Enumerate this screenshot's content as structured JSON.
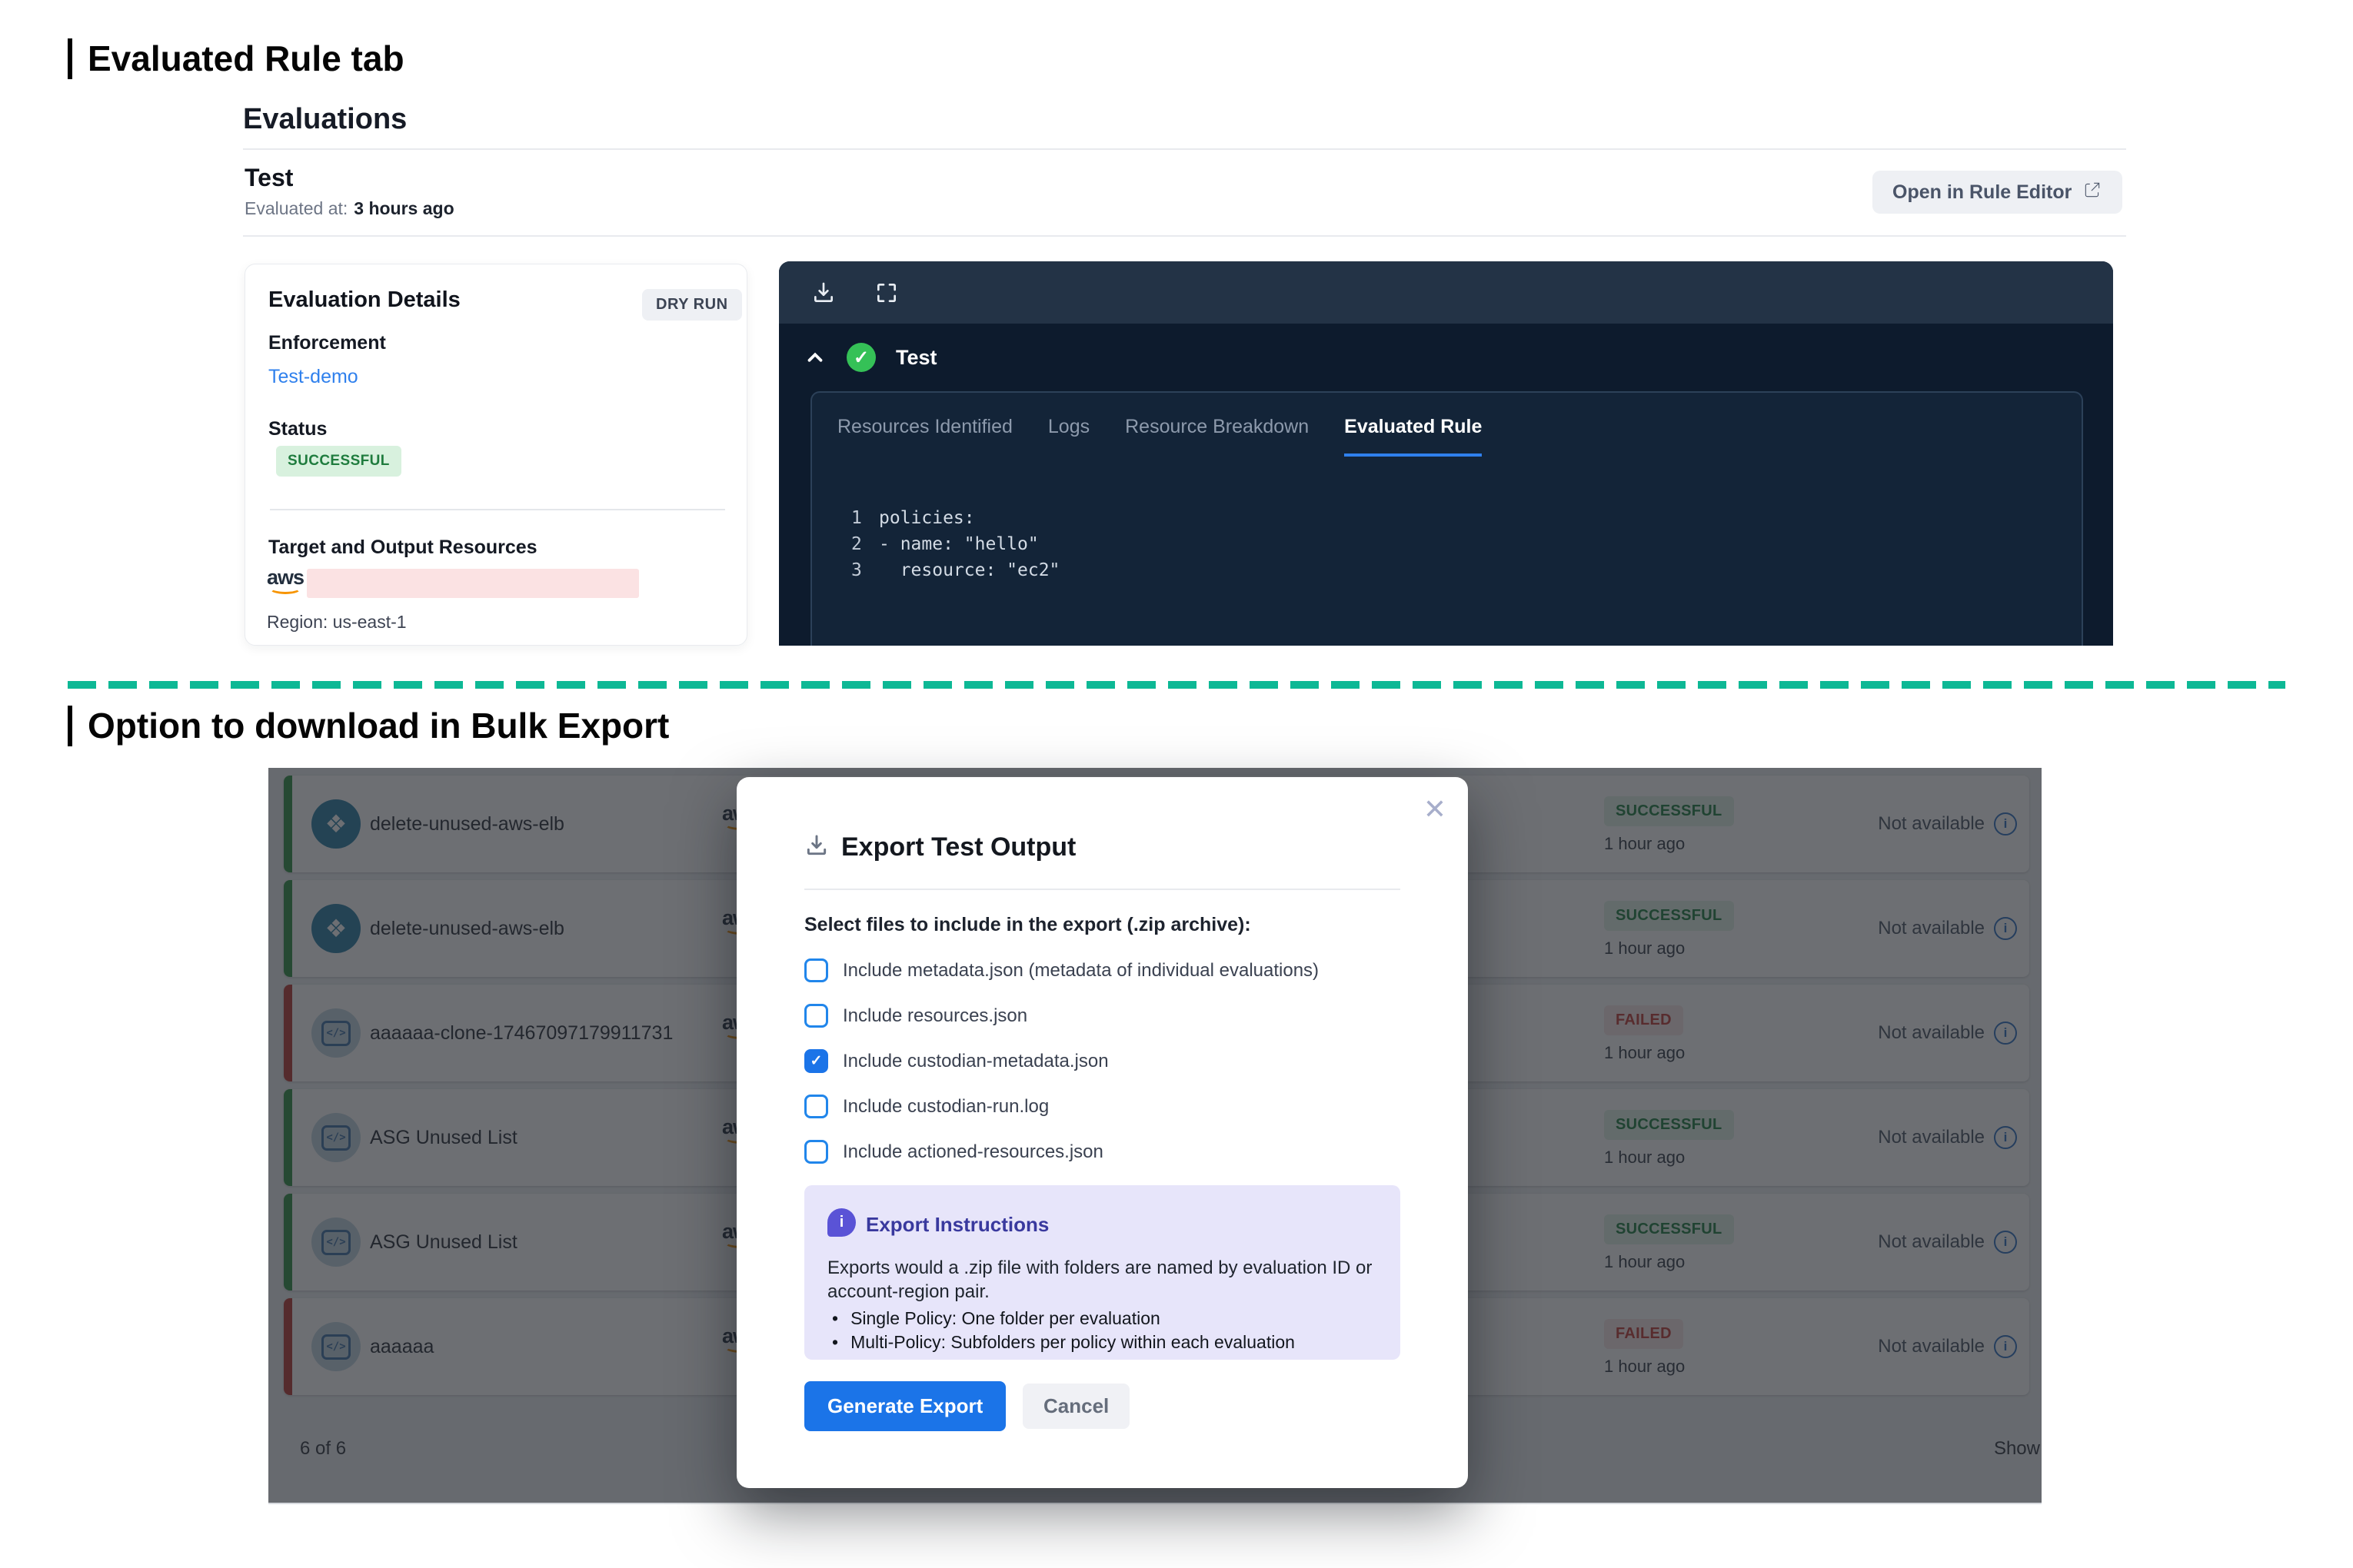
{
  "sections": {
    "section1_title": "Evaluated Rule tab",
    "section2_title": "Option to download in Bulk Export"
  },
  "aws_logo_text": "aws",
  "evaluations": {
    "heading": "Evaluations",
    "run_name": "Test",
    "evaluated_at_label": "Evaluated at:",
    "evaluated_at_value": "3 hours ago",
    "open_in_rule_editor": "Open in Rule Editor"
  },
  "evaluation_details": {
    "title": "Evaluation Details",
    "dry_run_badge": "DRY RUN",
    "enforcement_label": "Enforcement",
    "enforcement_value": "Test-demo",
    "status_label": "Status",
    "status_value": "SUCCESSFUL",
    "target_label": "Target and Output Resources",
    "region": "Region: us-east-1"
  },
  "viewer": {
    "run_name": "Test",
    "check_glyph": "✓",
    "tabs": [
      "Resources Identified",
      "Logs",
      "Resource Breakdown",
      "Evaluated Rule"
    ],
    "active_tab": "Evaluated Rule",
    "code_lines": [
      {
        "num": "1",
        "text": "policies:"
      },
      {
        "num": "2",
        "text": "- name: \"hello\""
      },
      {
        "num": "3",
        "text": "  resource: \"ec2\""
      }
    ]
  },
  "export_modal": {
    "title": "Export Test Output",
    "close_glyph": "✕",
    "select_label": "Select files to include in the export (.zip archive):",
    "checkboxes": [
      {
        "label": "Include metadata.json (metadata of individual evaluations)",
        "checked": false
      },
      {
        "label": "Include resources.json",
        "checked": false
      },
      {
        "label": "Include custodian-metadata.json",
        "checked": true
      },
      {
        "label": "Include custodian-run.log",
        "checked": false
      },
      {
        "label": "Include actioned-resources.json",
        "checked": false
      }
    ],
    "instructions": {
      "icon_glyph": "i",
      "title": "Export Instructions",
      "body": "Exports would a .zip file with folders are named by evaluation ID or account-region pair.",
      "bullets": [
        "Single Policy: One folder per evaluation",
        "Multi-Policy: Subfolders per policy within each evaluation"
      ]
    },
    "generate_button": "Generate Export",
    "cancel_button": "Cancel"
  },
  "bulk_table": {
    "rows": [
      {
        "name": "delete-unused-aws-elb",
        "icon": "pack",
        "bar": "green",
        "status": "SUCCESSFUL",
        "time": "1 hour ago",
        "availability": "Not available"
      },
      {
        "name": "delete-unused-aws-elb",
        "icon": "pack",
        "bar": "green",
        "status": "SUCCESSFUL",
        "time": "1 hour ago",
        "availability": "Not available"
      },
      {
        "name": "aaaaaa-clone-17467097179911731",
        "icon": "policy",
        "bar": "red",
        "status": "FAILED",
        "time": "1 hour ago",
        "availability": "Not available"
      },
      {
        "name": "ASG Unused List",
        "icon": "policy",
        "bar": "green",
        "status": "SUCCESSFUL",
        "time": "1 hour ago",
        "availability": "Not available"
      },
      {
        "name": "ASG Unused List",
        "icon": "policy",
        "bar": "green",
        "status": "SUCCESSFUL",
        "time": "1 hour ago",
        "availability": "Not available"
      },
      {
        "name": "aaaaaa",
        "icon": "policy",
        "bar": "red",
        "status": "FAILED",
        "time": "1 hour ago",
        "availability": "Not available"
      }
    ],
    "footer_count": "6 of 6",
    "footer_show": "Show",
    "pack_icon_glyph": "❖",
    "policy_icon_glyph": "</>",
    "info_icon_glyph": "i"
  },
  "colors": {
    "accent_blue": "#1b74e8",
    "link_blue": "#2f80ed",
    "success_green_text": "#1f7c3e",
    "failed_red_text": "#c23b36",
    "teal_divider": "#0db895",
    "dark_panel_bg": "#0d1b2d",
    "dark_header_bg": "#233346",
    "instructions_bg": "#e7e5fa"
  }
}
